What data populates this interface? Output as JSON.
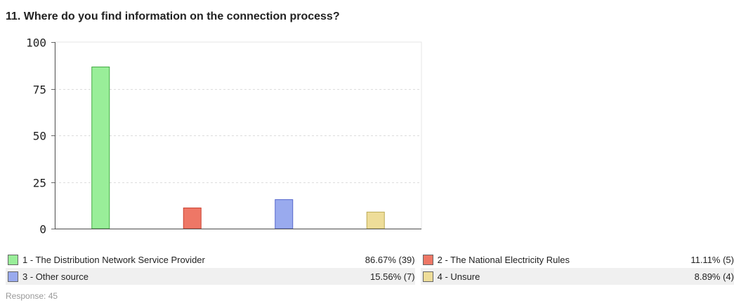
{
  "question": {
    "title": "11. Where do you find information on the connection process?"
  },
  "chart_data": {
    "type": "bar",
    "title": "11. Where do you find information on the connection process?",
    "categories": [
      "1 - The Distribution Network Service Provider",
      "2 - The National Electricity Rules",
      "3 - Other source",
      "4 - Unsure"
    ],
    "values": [
      86.67,
      11.11,
      15.56,
      8.89
    ],
    "colors": [
      "#99ee99",
      "#ee7766",
      "#99aaee",
      "#eedd99"
    ],
    "border_colors": [
      "#44aa44",
      "#cc4433",
      "#5566cc",
      "#bbaa55"
    ],
    "ylim": [
      0,
      100
    ],
    "yticks": [
      "0",
      "25",
      "50",
      "75",
      "100"
    ],
    "xlabel": "",
    "ylabel": "",
    "grid": true,
    "legend": "bottom"
  },
  "legend": {
    "items": [
      {
        "label": "1 - The Distribution Network Service Provider",
        "value": "86.67% (39)",
        "color": "#99ee99"
      },
      {
        "label": "2 - The National Electricity Rules",
        "value": "11.11% (5)",
        "color": "#ee7766"
      },
      {
        "label": "3 - Other source",
        "value": "15.56% (7)",
        "color": "#99aaee"
      },
      {
        "label": "4 - Unsure",
        "value": "8.89% (4)",
        "color": "#eedd99"
      }
    ]
  },
  "footer": {
    "response": "Response: 45"
  }
}
